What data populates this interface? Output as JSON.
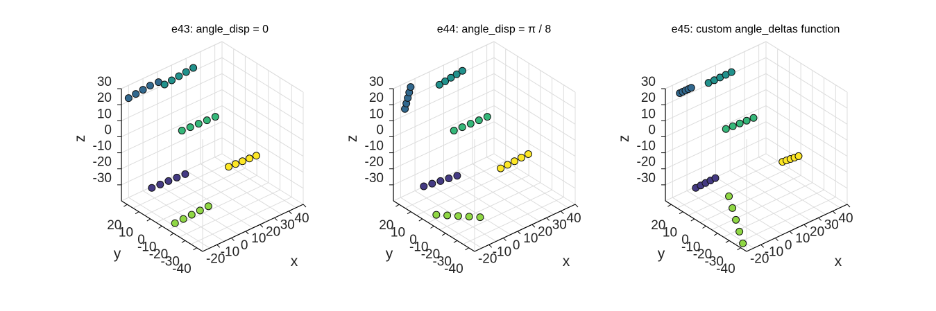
{
  "chart_data": [
    {
      "type": "scatter",
      "title": "e43: angle_disp = 0",
      "xlabel": "x",
      "ylabel": "y",
      "zlabel": "z",
      "x_ticks": [
        "-20",
        "-10",
        "0",
        "10",
        "20",
        "30",
        "40"
      ],
      "y_ticks": [
        "20",
        "10",
        "0",
        "-10",
        "-20",
        "-30",
        "-40"
      ],
      "z_ticks": [
        "30",
        "20",
        "10",
        "0",
        "-10",
        "-20",
        "-30"
      ],
      "series": [
        {
          "color": "#443a83",
          "x": [
            -25,
            -20,
            -15,
            -10,
            -5
          ],
          "y": [
            5,
            4,
            3,
            2,
            1
          ],
          "z": [
            -25,
            -24.5,
            -24,
            -23.5,
            -23
          ]
        },
        {
          "color": "#31688e",
          "x": [
            -25,
            -20,
            -15,
            -10,
            -5
          ],
          "y": [
            28,
            27,
            26,
            25,
            24
          ],
          "z": [
            22,
            22.5,
            23,
            23.5,
            24
          ]
        },
        {
          "color": "#21918c",
          "x": [
            0,
            5,
            10,
            15,
            20
          ],
          "y": [
            33,
            32,
            31,
            30,
            29
          ],
          "z": [
            20,
            20.5,
            21,
            21.5,
            22
          ]
        },
        {
          "color": "#35b779",
          "x": [
            0,
            5,
            10,
            15,
            20
          ],
          "y": [
            10,
            9,
            8,
            7,
            6
          ],
          "z": [
            -2,
            -1.5,
            -1,
            -0.5,
            0
          ]
        },
        {
          "color": "#fde725",
          "x": [
            18,
            22,
            26,
            30,
            34
          ],
          "y": [
            -8,
            -9,
            -10,
            -11,
            -12
          ],
          "z": [
            -24,
            -23.5,
            -23,
            -22.5,
            -22
          ]
        },
        {
          "color": "#8fd744",
          "x": [
            -25,
            -20,
            -15,
            -10,
            -5
          ],
          "y": [
            -15,
            -16,
            -17,
            -18,
            -19
          ],
          "z": [
            -38,
            -37,
            -36,
            -35,
            -34
          ]
        }
      ]
    },
    {
      "type": "scatter",
      "title": "e44: angle_disp = π / 8",
      "xlabel": "x",
      "ylabel": "y",
      "zlabel": "z",
      "x_ticks": [
        "-20",
        "-10",
        "0",
        "10",
        "20",
        "30",
        "40"
      ],
      "y_ticks": [
        "20",
        "10",
        "0",
        "-10",
        "-20",
        "-30",
        "-40"
      ],
      "z_ticks": [
        "30",
        "20",
        "10",
        "0",
        "-10",
        "-20",
        "-30"
      ],
      "series": [
        {
          "color": "#443a83",
          "x": [
            -25,
            -20,
            -15,
            -10,
            -5
          ],
          "y": [
            5,
            4,
            3,
            2,
            1
          ],
          "z": [
            -24,
            -24,
            -24,
            -24,
            -24
          ]
        },
        {
          "color": "#31688e",
          "x": [
            -22,
            -21,
            -20,
            -19,
            -18
          ],
          "y": [
            30,
            29,
            28,
            27,
            26
          ],
          "z": [
            14,
            17,
            20,
            23,
            26
          ]
        },
        {
          "color": "#21918c",
          "x": [
            2,
            6,
            10,
            14,
            18
          ],
          "y": [
            32,
            31,
            30,
            29,
            28
          ],
          "z": [
            19,
            19.5,
            20,
            20.5,
            21
          ]
        },
        {
          "color": "#35b779",
          "x": [
            0,
            5,
            10,
            15,
            20
          ],
          "y": [
            10,
            9,
            8,
            7,
            6
          ],
          "z": [
            -2,
            -1.5,
            -1,
            -0.5,
            0
          ]
        },
        {
          "color": "#fde725",
          "x": [
            18,
            22,
            26,
            30,
            34
          ],
          "y": [
            -8,
            -9,
            -10,
            -11,
            -12
          ],
          "z": [
            -25,
            -24,
            -23,
            -22,
            -21
          ]
        },
        {
          "color": "#8fd744",
          "x": [
            -30,
            -24,
            -18,
            -12,
            -6
          ],
          "y": [
            -12,
            -14,
            -16,
            -18,
            -20
          ],
          "z": [
            -32,
            -34,
            -36,
            -38,
            -40
          ]
        }
      ]
    },
    {
      "type": "scatter",
      "title": "e45: custom angle_deltas function",
      "xlabel": "x",
      "ylabel": "y",
      "zlabel": "z",
      "x_ticks": [
        "-20",
        "-10",
        "0",
        "10",
        "20",
        "30",
        "40"
      ],
      "y_ticks": [
        "20",
        "10",
        "0",
        "-10",
        "-20",
        "-30",
        "-40"
      ],
      "z_ticks": [
        "30",
        "20",
        "10",
        "0",
        "-10",
        "-20",
        "-30"
      ],
      "series": [
        {
          "color": "#443a83",
          "x": [
            -25,
            -22,
            -19,
            -16,
            -13
          ],
          "y": [
            5,
            4.5,
            4,
            3.5,
            3
          ],
          "z": [
            -25,
            -24.5,
            -24,
            -23.5,
            -23
          ]
        },
        {
          "color": "#31688e",
          "x": [
            -20,
            -18,
            -16,
            -14,
            -12
          ],
          "y": [
            27,
            27,
            27,
            27,
            27
          ],
          "z": [
            23,
            23,
            23,
            23,
            23
          ]
        },
        {
          "color": "#21918c",
          "x": [
            0,
            4,
            8,
            12,
            16
          ],
          "y": [
            32,
            31,
            30,
            29,
            28
          ],
          "z": [
            21,
            21,
            21,
            21,
            21
          ]
        },
        {
          "color": "#35b779",
          "x": [
            0,
            4,
            8,
            12,
            16
          ],
          "y": [
            10,
            9,
            8,
            7,
            6
          ],
          "z": [
            -1,
            -0.5,
            0,
            0.5,
            1
          ]
        },
        {
          "color": "#fde725",
          "x": [
            24,
            26,
            28,
            30,
            32
          ],
          "y": [
            -9,
            -10,
            -11,
            -12,
            -13
          ],
          "z": [
            -23,
            -22.5,
            -22,
            -21.5,
            -21
          ]
        },
        {
          "color": "#8fd744",
          "x": [
            -10,
            -10,
            -10,
            -10,
            -10
          ],
          "y": [
            -5,
            -8,
            -11,
            -14,
            -17
          ],
          "z": [
            -32,
            -38,
            -44,
            -50,
            -56
          ]
        }
      ]
    }
  ]
}
